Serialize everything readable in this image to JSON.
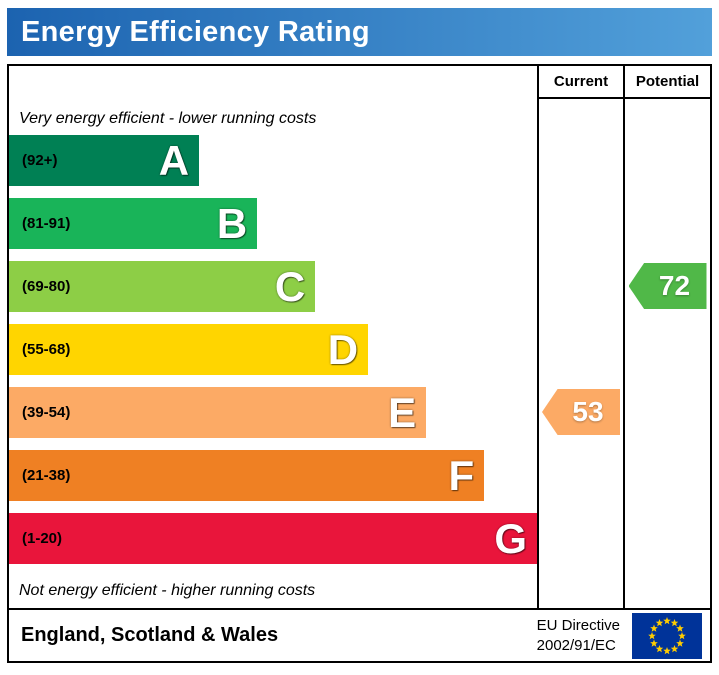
{
  "header": {
    "title": "Energy Efficiency Rating",
    "gradient_from": "#1c63b0",
    "gradient_to": "#52a0da",
    "text_color": "#ffffff"
  },
  "columns": {
    "current": "Current",
    "potential": "Potential"
  },
  "scale": {
    "top_note": "Very energy efficient - lower running costs",
    "bottom_note": "Not energy efficient - higher running costs"
  },
  "bands": [
    {
      "letter": "A",
      "range": "(92+)",
      "color": "#008054",
      "width_pct": 36
    },
    {
      "letter": "B",
      "range": "(81-91)",
      "color": "#19b459",
      "width_pct": 47
    },
    {
      "letter": "C",
      "range": "(69-80)",
      "color": "#8dce46",
      "width_pct": 58
    },
    {
      "letter": "D",
      "range": "(55-68)",
      "color": "#ffd500",
      "width_pct": 68
    },
    {
      "letter": "E",
      "range": "(39-54)",
      "color": "#fcaa65",
      "width_pct": 79
    },
    {
      "letter": "F",
      "range": "(21-38)",
      "color": "#ef8023",
      "width_pct": 90
    },
    {
      "letter": "G",
      "range": "(1-20)",
      "color": "#e9153b",
      "width_pct": 100
    }
  ],
  "ratings": {
    "current": {
      "value": "53",
      "band_index": 4,
      "color": "#fcaa65"
    },
    "potential": {
      "value": "72",
      "band_index": 2,
      "color": "#50b848"
    }
  },
  "footer": {
    "region": "England, Scotland & Wales",
    "directive_line1": "EU Directive",
    "directive_line2": "2002/91/EC",
    "flag_colors": {
      "field": "#003399",
      "stars": "#ffcc00"
    }
  },
  "chart_data": {
    "type": "bar",
    "title": "Energy Efficiency Rating",
    "categories": [
      "A",
      "B",
      "C",
      "D",
      "E",
      "F",
      "G"
    ],
    "ranges": [
      "92+",
      "81-91",
      "69-80",
      "55-68",
      "39-54",
      "21-38",
      "1-20"
    ],
    "values": [
      36,
      47,
      58,
      68,
      79,
      90,
      100
    ],
    "colors": [
      "#008054",
      "#19b459",
      "#8dce46",
      "#ffd500",
      "#fcaa65",
      "#ef8023",
      "#e9153b"
    ],
    "current_rating": 53,
    "current_band": "E",
    "potential_rating": 72,
    "potential_band": "C",
    "top_annotation": "Very energy efficient - lower running costs",
    "bottom_annotation": "Not energy efficient - higher running costs",
    "region_label": "England, Scotland & Wales",
    "directive_label": "EU Directive 2002/91/EC",
    "column_headers": [
      "Current",
      "Potential"
    ]
  }
}
